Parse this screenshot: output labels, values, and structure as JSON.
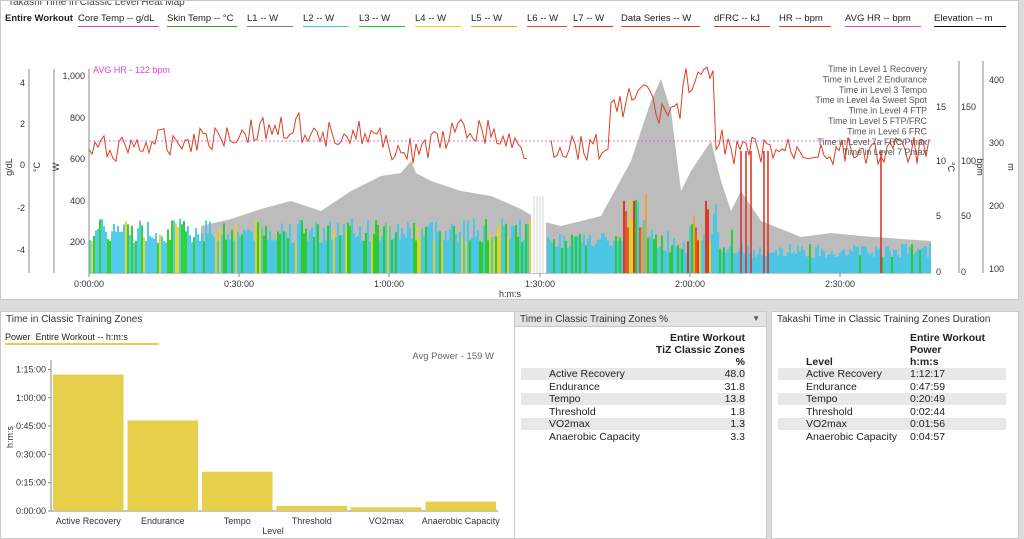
{
  "top": {
    "title": "Takashi Time in Classic Level Heat Map",
    "entire_label": "Entire Workout",
    "legend": [
      {
        "label": "Core Temp  -- g/dL",
        "color": "#cc44cc"
      },
      {
        "label": "Skin Temp  -- °C",
        "color": "#2e9a2e"
      },
      {
        "label": "L1  -- W",
        "color": "#7a7a7a"
      },
      {
        "label": "L2  -- W",
        "color": "#3fc7e8"
      },
      {
        "label": "L3  -- W",
        "color": "#1ecc1e"
      },
      {
        "label": "L4  -- W",
        "color": "#e8d21c"
      },
      {
        "label": "L5  -- W",
        "color": "#f0a020"
      },
      {
        "label": "L6  -- W",
        "color": "#e05020"
      },
      {
        "label": "L7  -- W",
        "color": "#e02a1a"
      },
      {
        "label": "Data Series  -- W",
        "color": "#d94020"
      },
      {
        "label": "dFRC  -- kJ",
        "color": "#d94020"
      },
      {
        "label": "HR  -- bpm",
        "color": "#d94020"
      },
      {
        "label": "AVG HR  -- bpm",
        "color": "#e040e0"
      },
      {
        "label": "Elevation  -- m",
        "color": "#111111"
      }
    ],
    "avg_hr_label": "AVG HR - 122 bpm",
    "right_legend": [
      "Time in Level 1 Recovery",
      "Time in Level 2 Endurance",
      "Time in Level 3 Tempo",
      "Time in Level 4a Sweet Spot",
      "Time in Level 4 FTP",
      "Time in Level 5 FTP/FRC",
      "Time in Level 6 FRC",
      "Time in Level 7a FRC/Pmax",
      "Time in Level 7 Pmax"
    ],
    "axes": {
      "gdl_label": "g/dL",
      "c_label": "°C",
      "w_label": "W",
      "gdl_ticks": [
        "4",
        "2",
        "0",
        "-2",
        "-4"
      ],
      "w_ticks": [
        "1,000",
        "800",
        "600",
        "400",
        "200"
      ],
      "right_c_ticks": [
        "15",
        "10",
        "5",
        "0"
      ],
      "right_c_label": "°C",
      "bpm_ticks": [
        "150",
        "100",
        "50",
        "0"
      ],
      "bpm_label": "bpm",
      "m_ticks": [
        "400",
        "300",
        "200",
        "100"
      ],
      "m_label": "m",
      "x_ticks": [
        "0:00:00",
        "0:30:00",
        "1:00:00",
        "1:30:00",
        "2:00:00",
        "2:30:00"
      ],
      "x_label": "h:m:s"
    },
    "colors": {
      "hr": "#d94020",
      "elevation": "#b0b0b0",
      "avg_hr": "#e040e0"
    }
  },
  "left_panel": {
    "title": "Time in Classic Training Zones",
    "legend_power": "Power",
    "legend_rest": "Entire Workout   -- h:m:s",
    "avg_power": "Avg Power - 159 W",
    "y_label": "h:m:s",
    "x_label": "Level",
    "bar_color": "#e6cf4a",
    "y_ticks": [
      "1:15:00",
      "1:00:00",
      "0:45:00",
      "0:30:00",
      "0:15:00",
      "0:00:00"
    ]
  },
  "chart_data": {
    "type": "bar",
    "categories": [
      "Active Recovery",
      "Endurance",
      "Tempo",
      "Threshold",
      "VO2max",
      "Anaerobic Capacity"
    ],
    "values": [
      72.28,
      47.98,
      20.82,
      2.73,
      1.93,
      4.95
    ],
    "ylim": [
      0,
      80
    ],
    "xlabel": "Level",
    "ylabel": "h:m:s"
  },
  "mid_panel": {
    "title": "Time in Classic Training Zones %",
    "header1": "Entire Workout",
    "header2": "TiZ Classic Zones",
    "header3": "%",
    "rows": [
      {
        "label": "Active Recovery",
        "value": "48.0"
      },
      {
        "label": "Endurance",
        "value": "31.8"
      },
      {
        "label": "Tempo",
        "value": "13.8"
      },
      {
        "label": "Threshold",
        "value": "1.8"
      },
      {
        "label": "VO2max",
        "value": "1.3"
      },
      {
        "label": "Anaerobic Capacity",
        "value": "3.3"
      }
    ]
  },
  "right_panel": {
    "title": "Takashi Time in Classic Training Zones Duration",
    "header1": "Entire Workout",
    "header2": "Power",
    "header3": "h:m:s",
    "level_header": "Level",
    "rows": [
      {
        "label": "Active Recovery",
        "value": "1:12:17"
      },
      {
        "label": "Endurance",
        "value": "0:47:59"
      },
      {
        "label": "Tempo",
        "value": "0:20:49"
      },
      {
        "label": "Threshold",
        "value": "0:02:44"
      },
      {
        "label": "VO2max",
        "value": "0:01:56"
      },
      {
        "label": "Anaerobic Capacity",
        "value": "0:04:57"
      }
    ]
  }
}
